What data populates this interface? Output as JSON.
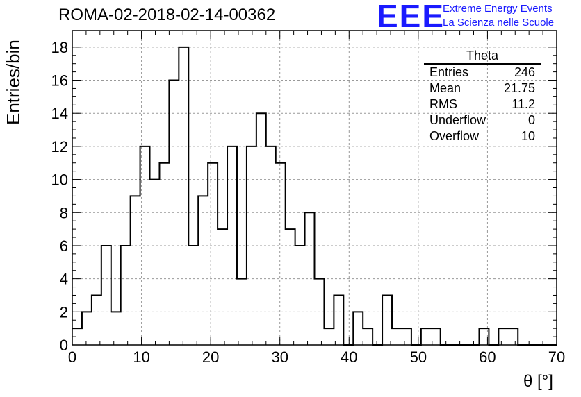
{
  "title": "ROMA-02-2018-02-14-00362",
  "logo": {
    "mark": "EEE",
    "line1": "Extreme Energy Events",
    "line2": "La Scienza nelle Scuole",
    "color": "#1a1aff"
  },
  "stats_box": {
    "title": "Theta",
    "rows": [
      {
        "label": "Entries",
        "value": "246"
      },
      {
        "label": "Mean",
        "value": "21.75"
      },
      {
        "label": "RMS",
        "value": "11.2"
      },
      {
        "label": "Underflow",
        "value": "0"
      },
      {
        "label": "Overflow",
        "value": "10"
      }
    ]
  },
  "chart_data": {
    "type": "bar",
    "histogram": true,
    "xlabel": "θ [°]",
    "ylabel": "Entries/bin",
    "xlim": [
      0,
      70
    ],
    "ylim": [
      0,
      19
    ],
    "bin_width": 1.4,
    "x_ticks": [
      0,
      10,
      20,
      30,
      40,
      50,
      60,
      70
    ],
    "y_ticks": [
      0,
      2,
      4,
      6,
      8,
      10,
      12,
      14,
      16,
      18
    ],
    "grid": true,
    "values": [
      1,
      2,
      3,
      6,
      2,
      6,
      9,
      12,
      10,
      11,
      16,
      18,
      6,
      9,
      11,
      7,
      12,
      4,
      12,
      14,
      12,
      11,
      7,
      6,
      8,
      4,
      1,
      3,
      0,
      2,
      1,
      0,
      3,
      1,
      1,
      0,
      1,
      1,
      0,
      0,
      0,
      0,
      1,
      0,
      1,
      1,
      0,
      0,
      0,
      0
    ]
  }
}
